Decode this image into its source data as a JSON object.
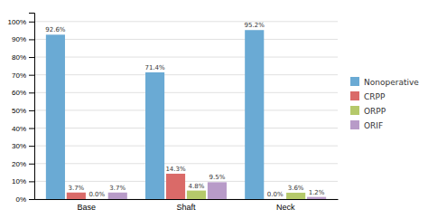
{
  "chart_data": {
    "type": "bar",
    "categories": [
      "Base",
      "Shaft",
      "Neck"
    ],
    "series": [
      {
        "name": "Nonoperative",
        "color": "#6AAAD4",
        "values": [
          92.6,
          71.4,
          95.2
        ],
        "value_labels": [
          "92.6%",
          "71.4%",
          "95.2%"
        ]
      },
      {
        "name": "CRPP",
        "color": "#DA6A68",
        "values": [
          3.7,
          14.3,
          0.0
        ],
        "value_labels": [
          "3.7%",
          "14.3%",
          "0.0%"
        ]
      },
      {
        "name": "ORPP",
        "color": "#B5C96A",
        "values": [
          0.0,
          4.8,
          3.6
        ],
        "value_labels": [
          "0.0%",
          "4.8%",
          "3.6%"
        ]
      },
      {
        "name": "ORIF",
        "color": "#B89BC8",
        "values": [
          3.7,
          9.5,
          1.2
        ],
        "value_labels": [
          "3.7%",
          "9.5%",
          "1.2%"
        ]
      }
    ],
    "ylim": [
      0,
      105
    ],
    "yticks": [
      {
        "value": 0,
        "label": "0%"
      },
      {
        "value": 10,
        "label": "10%"
      },
      {
        "value": 20,
        "label": "20%"
      },
      {
        "value": 30,
        "label": "30%"
      },
      {
        "value": 40,
        "label": "40%"
      },
      {
        "value": 50,
        "label": "50%"
      },
      {
        "value": 60,
        "label": "60%"
      },
      {
        "value": 70,
        "label": "70%"
      },
      {
        "value": 80,
        "label": "80%"
      },
      {
        "value": 90,
        "label": "90%"
      },
      {
        "value": 100,
        "label": "100%"
      }
    ],
    "grid": true,
    "legend": "right",
    "data_labels": true
  }
}
